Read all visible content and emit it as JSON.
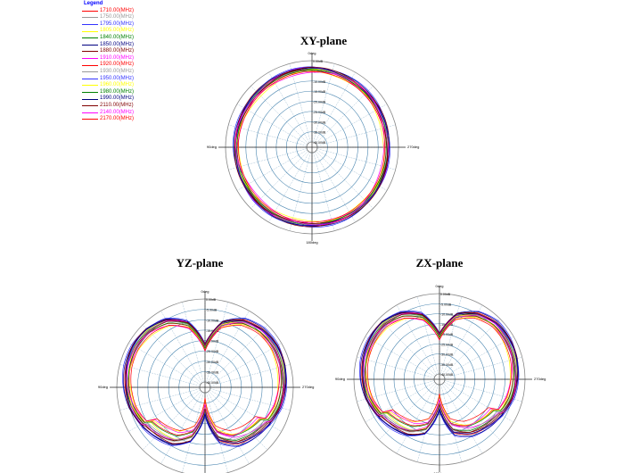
{
  "chart_data": [
    {
      "type": "polar",
      "title": "XY-plane",
      "angle_labels": [
        "0deg",
        "90deg",
        "180deg",
        "270deg"
      ],
      "radial_labels": [
        "0.00dB",
        "-5.00dB",
        "-10.00dB",
        "-15.00dB",
        "-20.00dB",
        "-25.00dB",
        "-30.00dB",
        "-35.00dB",
        "-40.00dB"
      ],
      "rlim_db": [
        -40,
        0
      ],
      "angles_deg": [
        0,
        30,
        60,
        90,
        120,
        150,
        180,
        210,
        240,
        270,
        300,
        330
      ],
      "gain_db": [
        -3.5,
        -4,
        -4.5,
        -4.5,
        -4.5,
        -4,
        -4,
        -4,
        -4.5,
        -5,
        -4.5,
        -4
      ]
    },
    {
      "type": "polar",
      "title": "YZ-plane",
      "angle_labels": [
        "0deg",
        "90deg",
        "180deg",
        "270deg"
      ],
      "radial_labels": [
        "0.00dB",
        "-5.00dB",
        "-10.00dB",
        "-15.00dB",
        "-20.00dB",
        "-25.00dB",
        "-30.00dB",
        "-35.00dB",
        "-40.00dB"
      ],
      "rlim_db": [
        -40,
        0
      ],
      "angles_deg": [
        0,
        15,
        30,
        45,
        60,
        75,
        90,
        105,
        120,
        135,
        150,
        165,
        180,
        195,
        210,
        225,
        240,
        255,
        270,
        285,
        300,
        315,
        330,
        345
      ],
      "gain_db": [
        -22,
        -10,
        -5,
        -3,
        -2.5,
        -3,
        -4,
        -5,
        -7,
        -9,
        -11,
        -16,
        -30,
        -16,
        -11,
        -9,
        -7,
        -5,
        -4,
        -3,
        -2.5,
        -3,
        -5,
        -10
      ]
    },
    {
      "type": "polar",
      "title": "ZX-plane",
      "angle_labels": [
        "0deg",
        "90deg",
        "180deg",
        "270deg"
      ],
      "radial_labels": [
        "0.00dB",
        "-5.00dB",
        "-10.00dB",
        "-15.00dB",
        "-20.00dB",
        "-25.00dB",
        "-30.00dB",
        "-35.00dB",
        "-40.00dB"
      ],
      "rlim_db": [
        -40,
        0
      ],
      "angles_deg": [
        0,
        15,
        30,
        45,
        60,
        75,
        90,
        105,
        120,
        135,
        150,
        165,
        180,
        195,
        210,
        225,
        240,
        255,
        270,
        285,
        300,
        315,
        330,
        345
      ],
      "gain_db": [
        -20,
        -9,
        -4.5,
        -2.5,
        -2.5,
        -3,
        -4,
        -5,
        -7,
        -9,
        -11,
        -15,
        -28,
        -15,
        -11,
        -9,
        -7,
        -5,
        -4,
        -3,
        -2.5,
        -2.5,
        -4.5,
        -9
      ]
    }
  ],
  "legend": {
    "title": "Legend",
    "series": [
      {
        "name": "1710.00(MHz)",
        "color": "#ff0000",
        "offset_db": 0
      },
      {
        "name": "1750.00(MHz)",
        "color": "#999999",
        "offset_db": -0.5
      },
      {
        "name": "1795.00(MHz)",
        "color": "#3333ff",
        "offset_db": 0.3
      },
      {
        "name": "1805.00(MHz)",
        "color": "#ffff00",
        "offset_db": -1.5
      },
      {
        "name": "1840.00(MHz)",
        "color": "#008000",
        "offset_db": -0.8
      },
      {
        "name": "1850.00(MHz)",
        "color": "#000080",
        "offset_db": 0.2
      },
      {
        "name": "1880.00(MHz)",
        "color": "#800000",
        "offset_db": -0.3
      },
      {
        "name": "1910.00(MHz)",
        "color": "#ff00ff",
        "offset_db": -1.2
      },
      {
        "name": "1920.00(MHz)",
        "color": "#ff0000",
        "offset_db": -2
      },
      {
        "name": "1930.00(MHz)",
        "color": "#999999",
        "offset_db": -1
      },
      {
        "name": "1950.00(MHz)",
        "color": "#3333ff",
        "offset_db": 0.1
      },
      {
        "name": "1960.00(MHz)",
        "color": "#ffff00",
        "offset_db": -2.5
      },
      {
        "name": "1980.00(MHz)",
        "color": "#008000",
        "offset_db": -1.8
      },
      {
        "name": "1990.00(MHz)",
        "color": "#000080",
        "offset_db": 0
      },
      {
        "name": "2110.00(MHz)",
        "color": "#800000",
        "offset_db": -0.6
      },
      {
        "name": "2140.00(MHz)",
        "color": "#ff00ff",
        "offset_db": -2.2
      },
      {
        "name": "2170.00(MHz)",
        "color": "#ff0000",
        "offset_db": -3
      }
    ]
  }
}
